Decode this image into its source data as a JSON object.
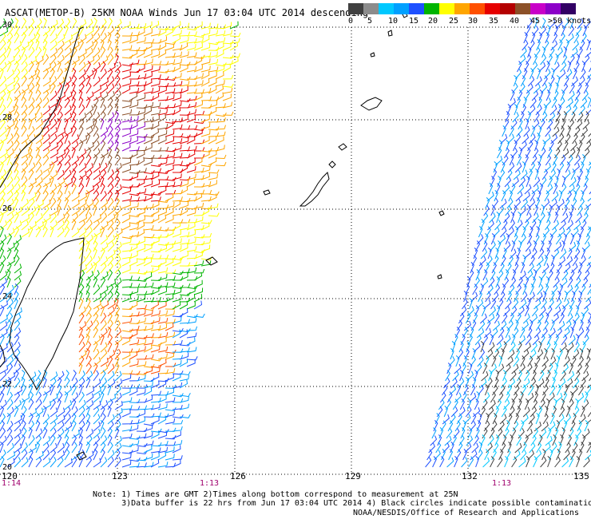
{
  "title": "ASCAT(METOP-B) 25KM NOAA Winds  Jun 17 03:04 UTC 2014 descending",
  "legend": {
    "labels": [
      "0",
      "5",
      "10",
      "15",
      "20",
      "25",
      "30",
      "35",
      "40",
      "45",
      ">50 knots"
    ],
    "colors": [
      "#404040",
      "#8c8c8c",
      "#00c8ff",
      "#00a0ff",
      "#1e50ff",
      "#00b400",
      "#ffff00",
      "#ffa500",
      "#ff5000",
      "#e60000",
      "#b40000",
      "#8c5028",
      "#c800c8",
      "#8c00c8",
      "#320064"
    ]
  },
  "axes": {
    "lat_labels": [
      "30",
      "28",
      "26",
      "24",
      "22",
      "20"
    ],
    "lon_labels": [
      "120",
      "123",
      "126",
      "129",
      "132",
      "135"
    ],
    "time_labels": [
      "1:14",
      "1:13",
      "1:13"
    ]
  },
  "notes": {
    "line1": "Note: 1) Times are GMT 2)Times along bottom correspond to measurement at 25N",
    "line2": "      3)Data buffer is 22 hrs from Jun 17 03:04 UTC 2014 4) Black circles indicate possible contamination"
  },
  "credit": "NOAA/NESDIS/Office of Research and Applications"
}
